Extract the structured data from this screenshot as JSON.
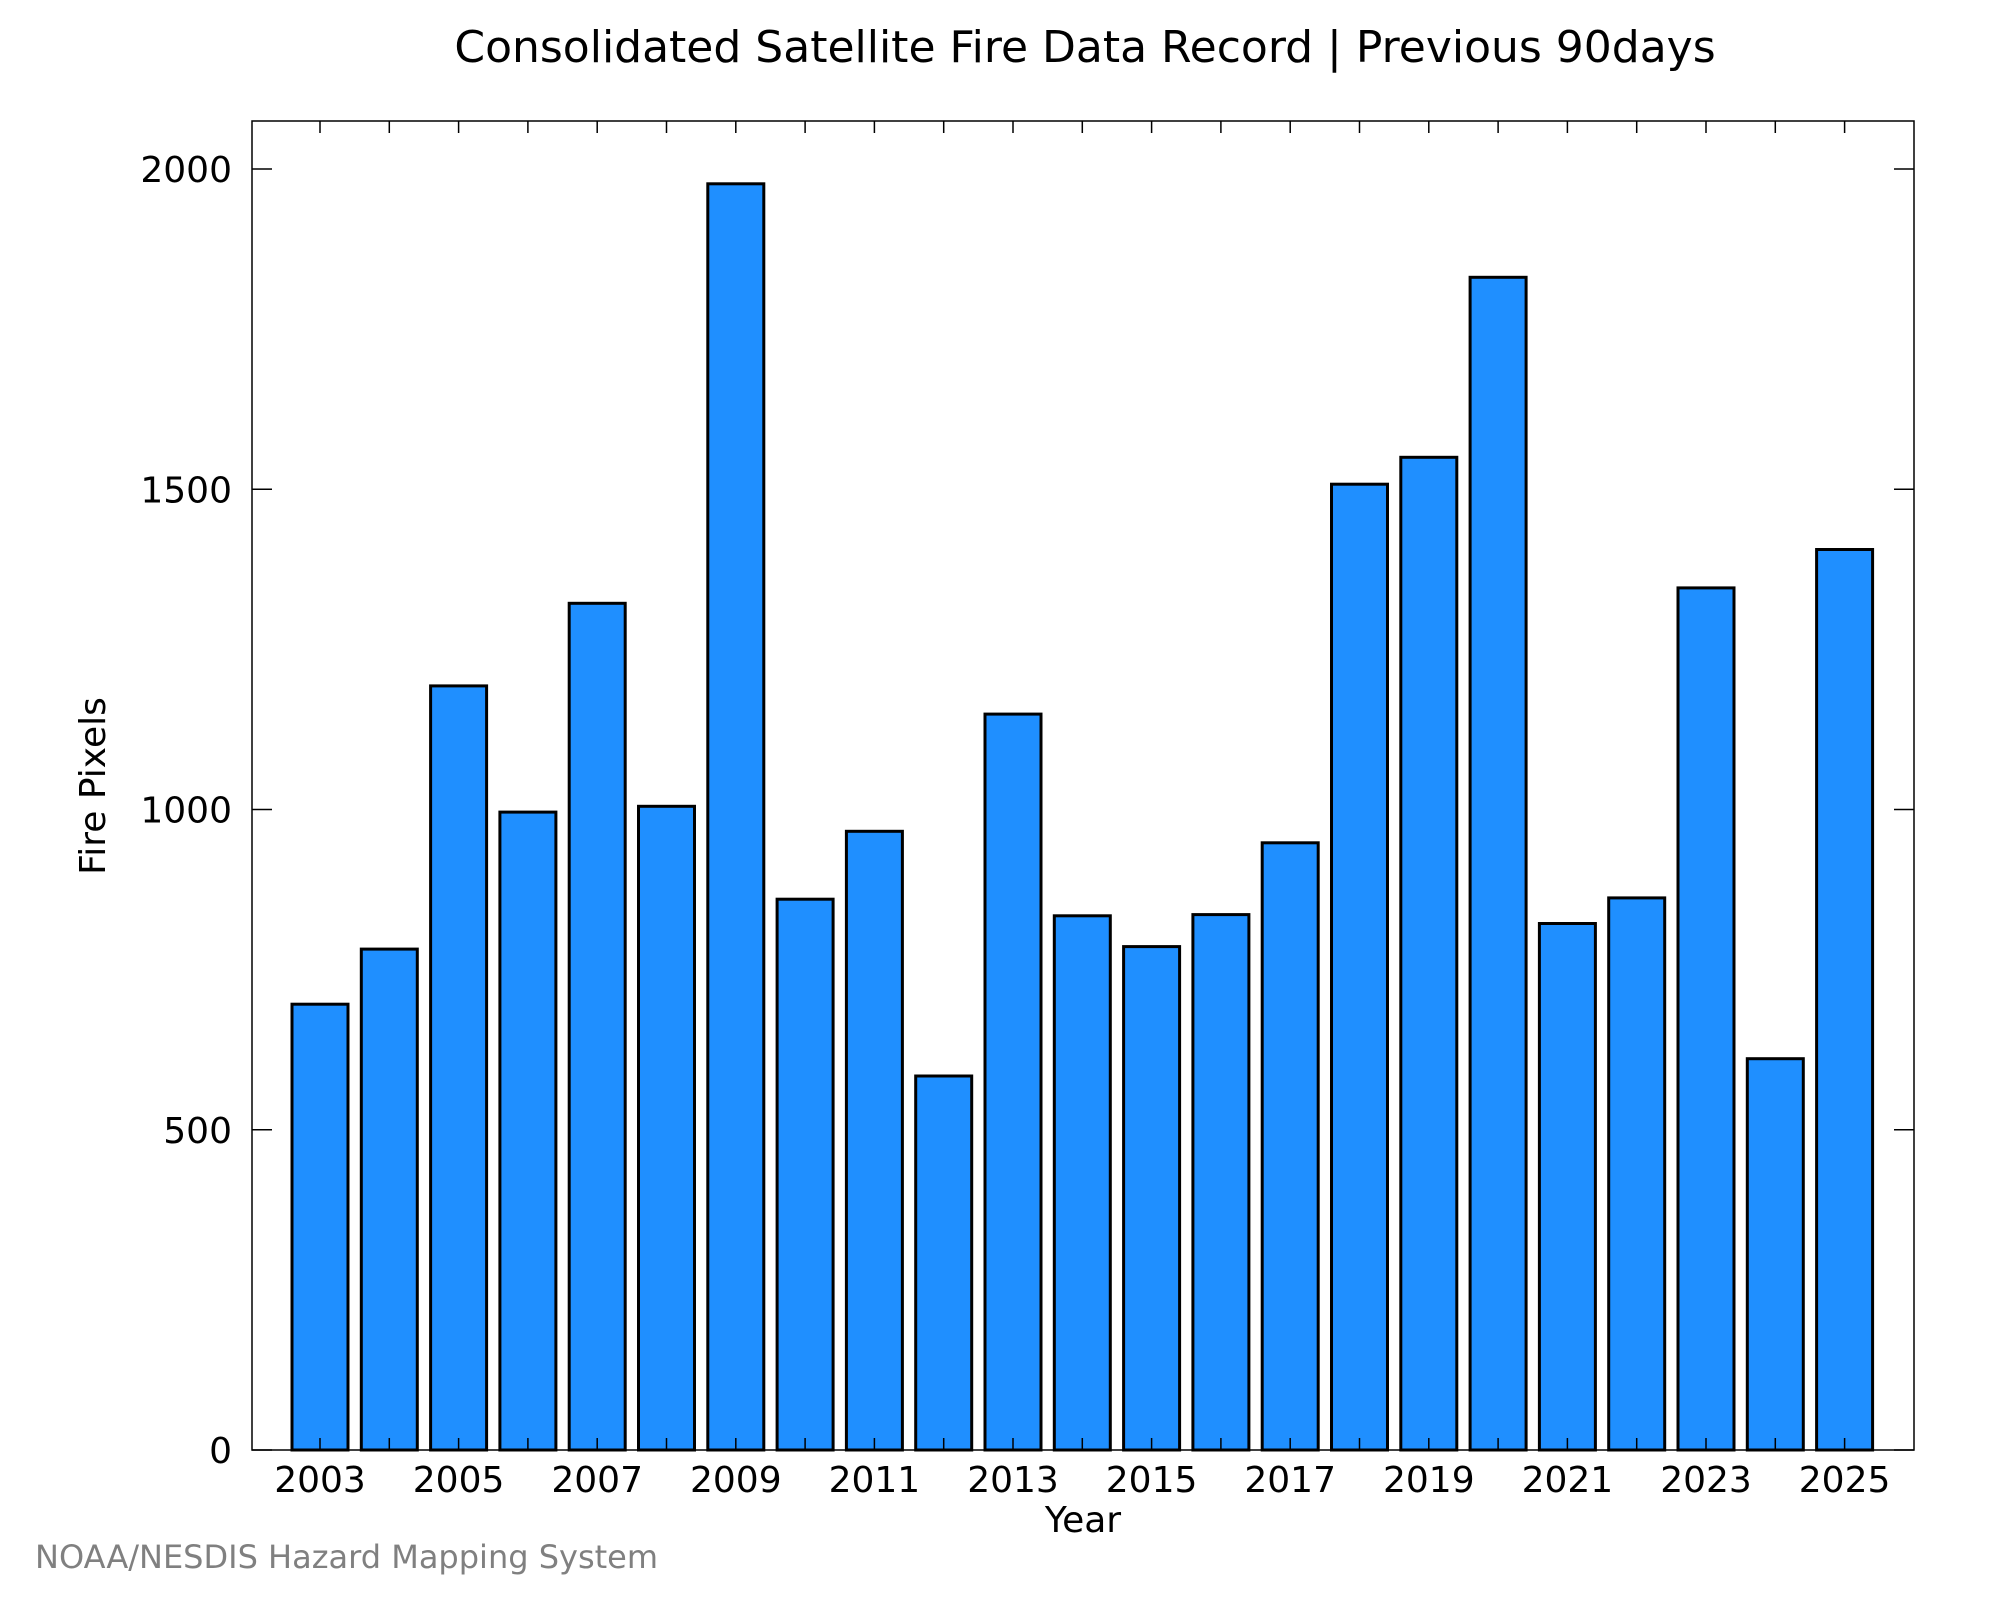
{
  "colors": {
    "bar_fill": "#1f8fff",
    "bar_stroke": "#000000",
    "axis": "#000000",
    "footer_text": "#808080"
  },
  "footer": {
    "credit": "NOAA/NESDIS Hazard Mapping System"
  },
  "chart_data": {
    "type": "bar",
    "title": "Consolidated Satellite Fire Data Record | Previous 90days",
    "xlabel": "Year",
    "ylabel": "Fire Pixels",
    "ylim": [
      0,
      2075
    ],
    "yticks": [
      0,
      500,
      1000,
      1500,
      2000
    ],
    "xtick_labels": [
      "2003",
      "2005",
      "2007",
      "2009",
      "2011",
      "2013",
      "2015",
      "2017",
      "2019",
      "2021",
      "2023",
      "2025"
    ],
    "grid": false,
    "legend": "none",
    "categories": [
      "2003",
      "2004",
      "2005",
      "2006",
      "2007",
      "2008",
      "2009",
      "2010",
      "2011",
      "2012",
      "2013",
      "2014",
      "2015",
      "2016",
      "2017",
      "2018",
      "2019",
      "2020",
      "2021",
      "2022",
      "2023",
      "2024",
      "2025"
    ],
    "values": [
      696,
      782,
      1193,
      996,
      1322,
      1005,
      1977,
      860,
      966,
      584,
      1149,
      834,
      786,
      836,
      948,
      1508,
      1550,
      1831,
      822,
      862,
      1346,
      611,
      1406
    ]
  }
}
